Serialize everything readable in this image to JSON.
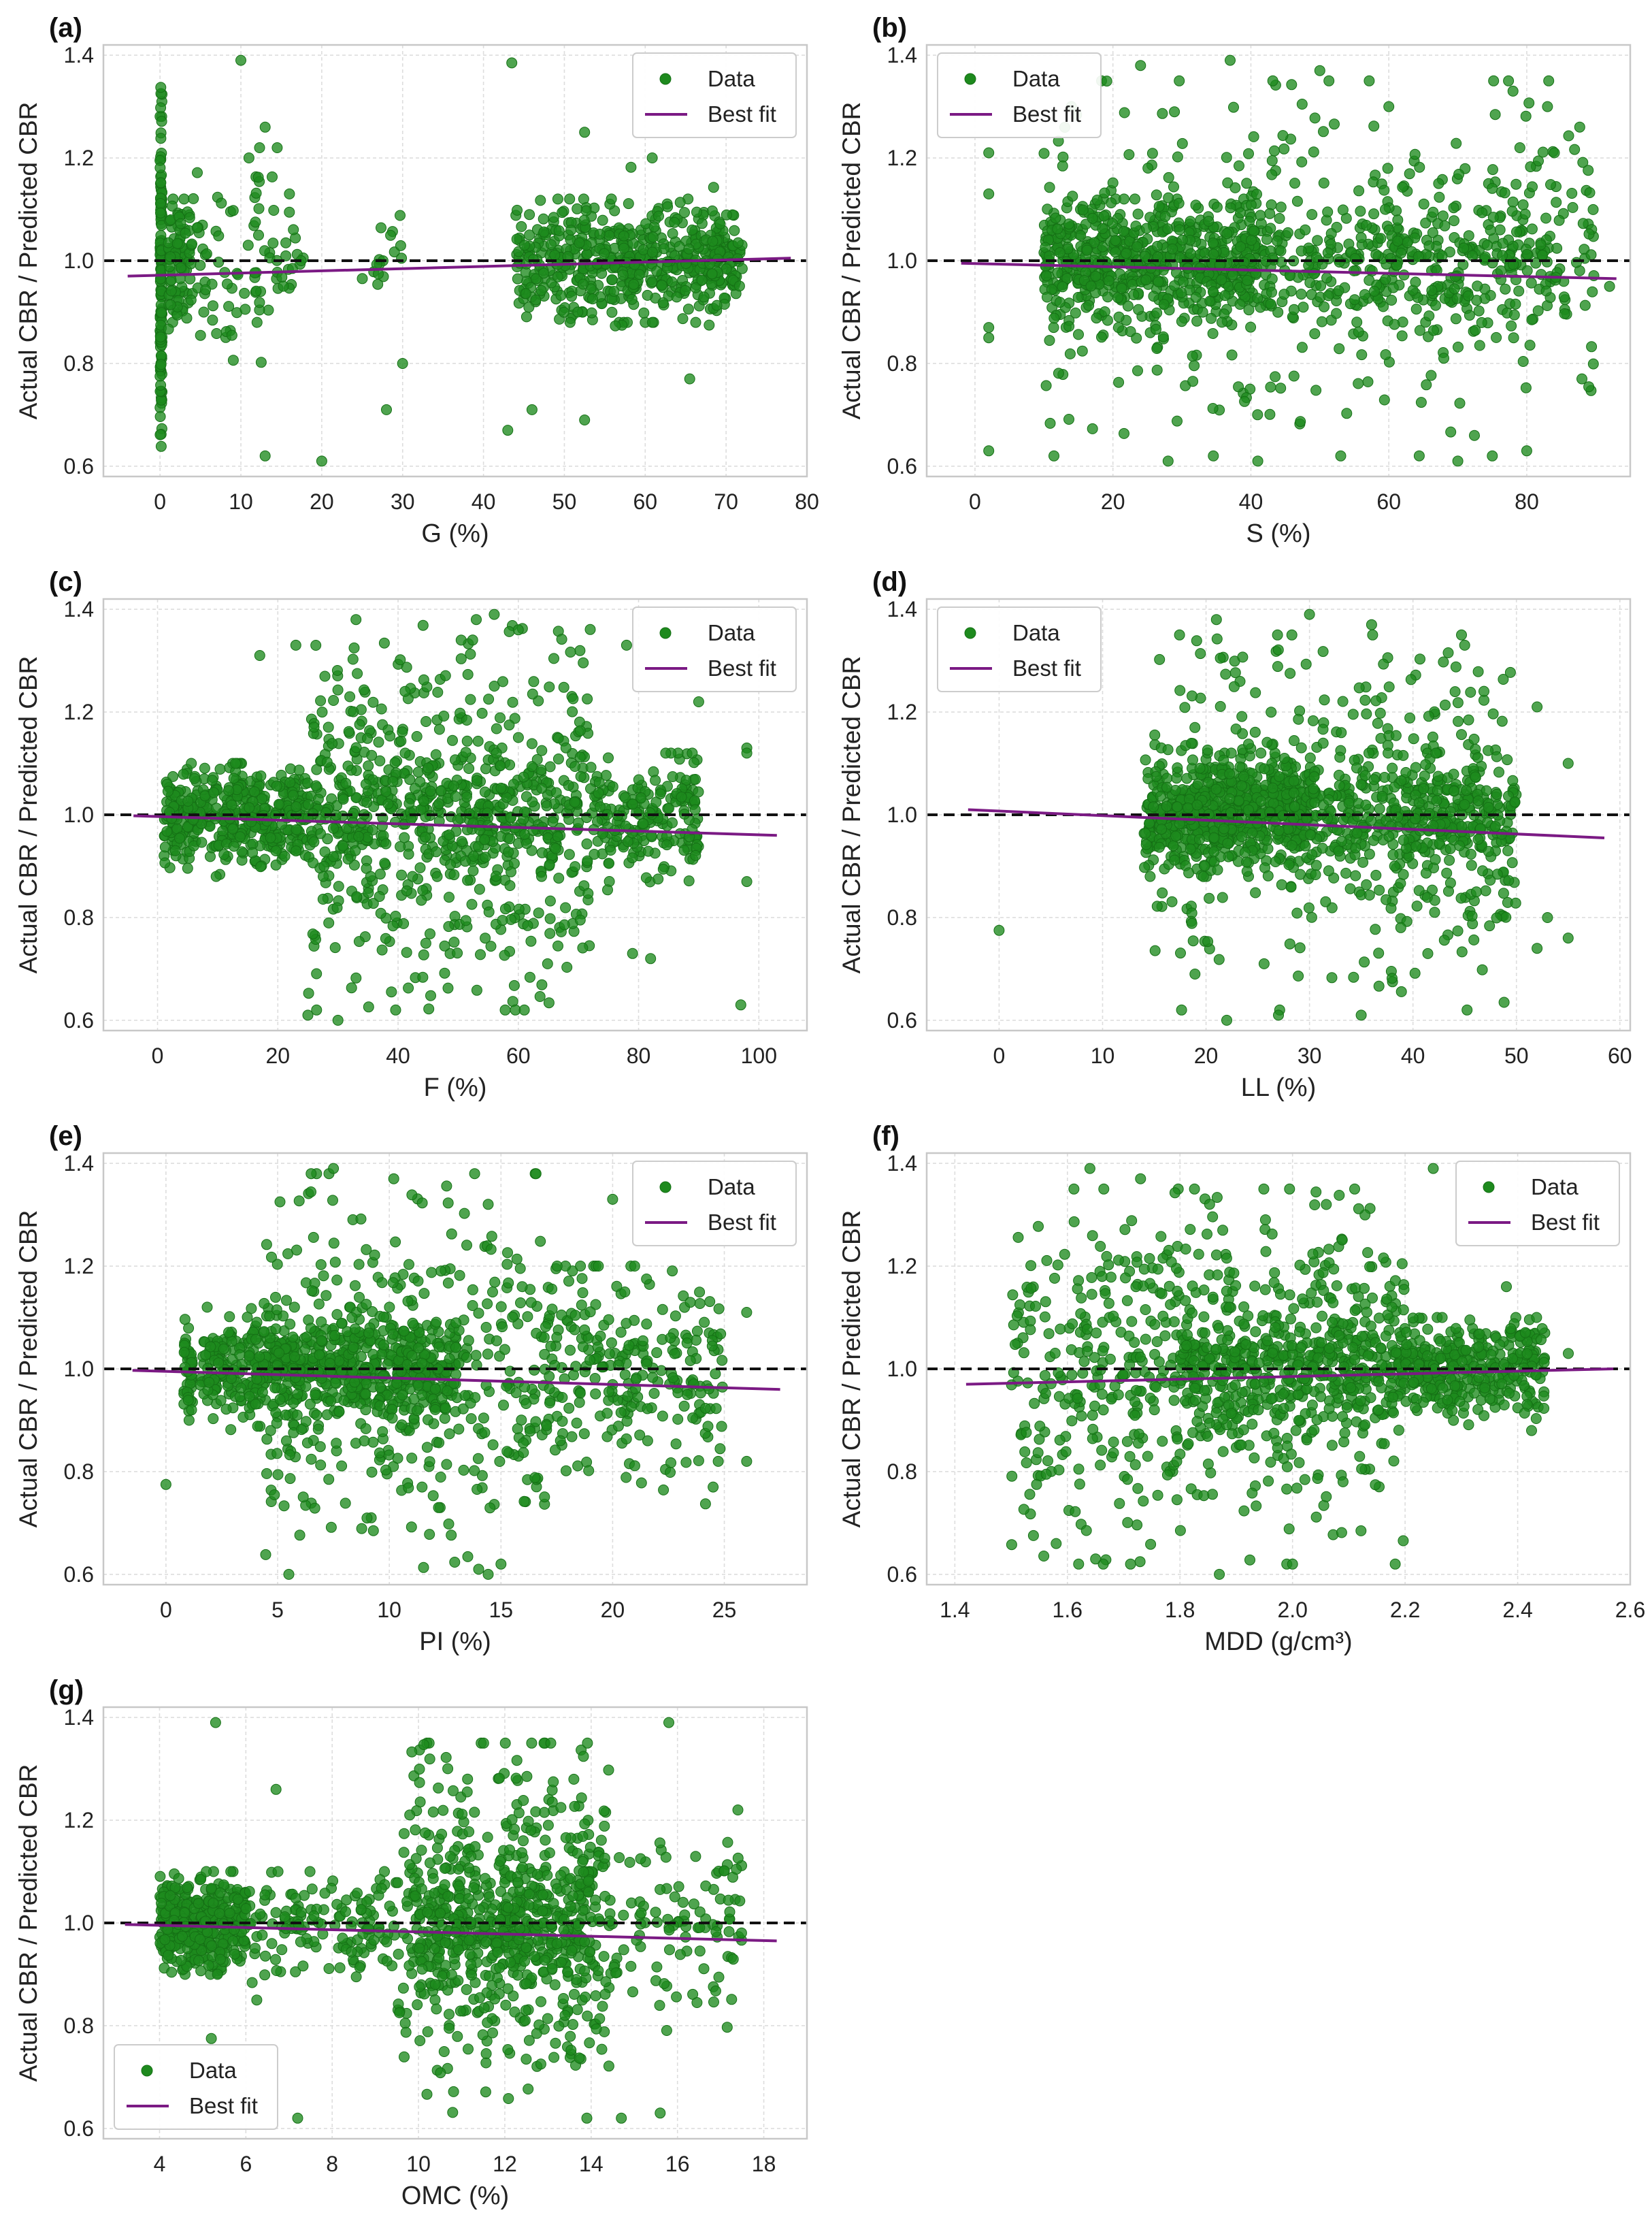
{
  "figure": {
    "ylabel": "Actual CBR / Predicted CBR",
    "legend_data": "Data",
    "legend_fit": "Best fit",
    "colors": {
      "points": "#1e8a1e",
      "points_edge": "#157015",
      "fit": "#7b1a84",
      "reference": "#111111",
      "grid": "#dddddd",
      "frame": "#c8c8c8",
      "text": "#222222"
    }
  },
  "chart_data": [
    {
      "id": "a",
      "panel_label": "(a)",
      "type": "scatter",
      "xlabel": "G (%)",
      "xlim": [
        -7,
        80
      ],
      "ylim": [
        0.58,
        1.42
      ],
      "xticks": [
        "0",
        "10",
        "20",
        "30",
        "40",
        "50",
        "60",
        "70",
        "80"
      ],
      "yticks": [
        "0.6",
        "0.8",
        "1.0",
        "1.2",
        "1.4"
      ],
      "reference_line": 1.0,
      "best_fit": {
        "x": [
          -4,
          78
        ],
        "y": [
          0.97,
          1.005
        ]
      },
      "legend": "top-right",
      "clusters": [
        {
          "x": [
            0,
            0.25
          ],
          "y": [
            0.6,
            1.38
          ],
          "n": 130
        },
        {
          "x": [
            1,
            4
          ],
          "y": [
            0.82,
            1.12
          ],
          "n": 90
        },
        {
          "x": [
            4,
            15
          ],
          "y": [
            0.78,
            1.22
          ],
          "n": 70
        },
        {
          "x": [
            14,
            18
          ],
          "y": [
            0.92,
            1.12
          ],
          "n": 18
        },
        {
          "x": [
            25,
            30
          ],
          "y": [
            0.9,
            1.12
          ],
          "n": 16
        },
        {
          "x": [
            44,
            72
          ],
          "y": [
            0.88,
            1.12
          ],
          "n": 520
        },
        {
          "x": [
            45,
            70
          ],
          "y": [
            0.72,
            1.2
          ],
          "n": 40
        }
      ],
      "points": [
        [
          10,
          1.39
        ],
        [
          43.5,
          1.385
        ],
        [
          13,
          1.26
        ],
        [
          20,
          0.61
        ],
        [
          13,
          0.62
        ],
        [
          52.5,
          1.25
        ],
        [
          52.5,
          0.69
        ],
        [
          43,
          0.67
        ],
        [
          28,
          0.71
        ],
        [
          30,
          0.8
        ],
        [
          46,
          0.71
        ],
        [
          65.5,
          0.77
        ],
        [
          16,
          1.13
        ],
        [
          11,
          1.2
        ],
        [
          12,
          0.88
        ]
      ]
    },
    {
      "id": "b",
      "panel_label": "(b)",
      "type": "scatter",
      "xlabel": "S (%)",
      "xlim": [
        -7,
        95
      ],
      "ylim": [
        0.58,
        1.42
      ],
      "xticks": [
        "0",
        "20",
        "40",
        "60",
        "80"
      ],
      "yticks": [
        "0.6",
        "0.8",
        "1.0",
        "1.2",
        "1.4"
      ],
      "reference_line": 1.0,
      "best_fit": {
        "x": [
          -2,
          93
        ],
        "y": [
          0.995,
          0.965
        ]
      },
      "legend": "top-left",
      "clusters": [
        {
          "x": [
            10,
            42
          ],
          "y": [
            0.86,
            1.12
          ],
          "n": 560
        },
        {
          "x": [
            10,
            90
          ],
          "y": [
            0.62,
            1.35
          ],
          "n": 450
        },
        {
          "x": [
            42,
            85
          ],
          "y": [
            0.85,
            1.15
          ],
          "n": 260
        }
      ],
      "points": [
        [
          2,
          0.63
        ],
        [
          2,
          0.85
        ],
        [
          2,
          0.87
        ],
        [
          2,
          1.13
        ],
        [
          2,
          1.21
        ],
        [
          37,
          1.39
        ],
        [
          50,
          1.37
        ],
        [
          24,
          1.38
        ],
        [
          60,
          1.3
        ],
        [
          78,
          1.33
        ],
        [
          83,
          1.3
        ],
        [
          79,
          1.22
        ],
        [
          84,
          1.21
        ],
        [
          88,
          0.77
        ],
        [
          92,
          0.95
        ],
        [
          28,
          0.61
        ],
        [
          41,
          0.61
        ],
        [
          70,
          0.61
        ],
        [
          75,
          0.62
        ],
        [
          80,
          0.63
        ]
      ]
    },
    {
      "id": "c",
      "panel_label": "(c)",
      "type": "scatter",
      "xlabel": "F (%)",
      "xlim": [
        -9,
        108
      ],
      "ylim": [
        0.58,
        1.42
      ],
      "xticks": [
        "0",
        "20",
        "40",
        "60",
        "80",
        "100"
      ],
      "yticks": [
        "0.6",
        "0.8",
        "1.0",
        "1.2",
        "1.4"
      ],
      "reference_line": 1.0,
      "best_fit": {
        "x": [
          -4,
          103
        ],
        "y": [
          0.998,
          0.96
        ]
      },
      "legend": "top-right",
      "clusters": [
        {
          "x": [
            1,
            25
          ],
          "y": [
            0.88,
            1.1
          ],
          "n": 430
        },
        {
          "x": [
            25,
            72
          ],
          "y": [
            0.62,
            1.38
          ],
          "n": 520
        },
        {
          "x": [
            25,
            70
          ],
          "y": [
            0.88,
            1.12
          ],
          "n": 260
        },
        {
          "x": [
            72,
            90
          ],
          "y": [
            0.85,
            1.12
          ],
          "n": 200
        }
      ],
      "points": [
        [
          33,
          1.38
        ],
        [
          56,
          1.39
        ],
        [
          60,
          1.36
        ],
        [
          23,
          1.33
        ],
        [
          78,
          1.33
        ],
        [
          17,
          1.31
        ],
        [
          97,
          0.63
        ],
        [
          98,
          0.87
        ],
        [
          98,
          1.13
        ],
        [
          98,
          1.12
        ],
        [
          90,
          1.22
        ],
        [
          79,
          0.73
        ],
        [
          82,
          0.72
        ],
        [
          25,
          0.61
        ],
        [
          30,
          0.6
        ],
        [
          61,
          0.62
        ]
      ]
    },
    {
      "id": "d",
      "panel_label": "(d)",
      "type": "scatter",
      "xlabel": "LL (%)",
      "xlim": [
        -7,
        61
      ],
      "ylim": [
        0.58,
        1.42
      ],
      "xticks": [
        "0",
        "10",
        "20",
        "30",
        "40",
        "50",
        "60"
      ],
      "yticks": [
        "0.6",
        "0.8",
        "1.0",
        "1.2",
        "1.4"
      ],
      "reference_line": 1.0,
      "best_fit": {
        "x": [
          -3,
          58.5
        ],
        "y": [
          1.01,
          0.955
        ]
      },
      "legend": "top-left",
      "clusters": [
        {
          "x": [
            14,
            30
          ],
          "y": [
            0.88,
            1.12
          ],
          "n": 620
        },
        {
          "x": [
            15,
            50
          ],
          "y": [
            0.62,
            1.35
          ],
          "n": 450
        },
        {
          "x": [
            30,
            50
          ],
          "y": [
            0.85,
            1.12
          ],
          "n": 300
        }
      ],
      "points": [
        [
          0,
          0.775
        ],
        [
          30,
          1.39
        ],
        [
          21,
          1.38
        ],
        [
          36,
          1.37
        ],
        [
          45,
          1.33
        ],
        [
          52,
          1.21
        ],
        [
          55,
          1.1
        ],
        [
          55,
          0.76
        ],
        [
          53,
          0.8
        ],
        [
          52,
          0.74
        ],
        [
          22,
          0.6
        ],
        [
          27,
          0.61
        ],
        [
          35,
          0.61
        ]
      ]
    },
    {
      "id": "e",
      "panel_label": "(e)",
      "type": "scatter",
      "xlabel": "PI (%)",
      "xlim": [
        -2.8,
        28.7
      ],
      "ylim": [
        0.58,
        1.42
      ],
      "xticks": [
        "0",
        "5",
        "10",
        "15",
        "20",
        "25"
      ],
      "yticks": [
        "0.6",
        "0.8",
        "1.0",
        "1.2",
        "1.4"
      ],
      "reference_line": 1.0,
      "best_fit": {
        "x": [
          -1.5,
          27.5
        ],
        "y": [
          0.997,
          0.96
        ]
      },
      "legend": "top-right",
      "clusters": [
        {
          "x": [
            0.8,
            1.2
          ],
          "y": [
            0.9,
            1.12
          ],
          "n": 50
        },
        {
          "x": [
            1.5,
            13
          ],
          "y": [
            0.88,
            1.12
          ],
          "n": 650
        },
        {
          "x": [
            4,
            17
          ],
          "y": [
            0.6,
            1.38
          ],
          "n": 400
        },
        {
          "x": [
            17,
            25
          ],
          "y": [
            0.72,
            1.2
          ],
          "n": 250
        }
      ],
      "points": [
        [
          0,
          0.775
        ],
        [
          7.5,
          1.39
        ],
        [
          10.2,
          1.37
        ],
        [
          6.5,
          1.38
        ],
        [
          20,
          1.33
        ],
        [
          26,
          1.11
        ],
        [
          26,
          0.82
        ],
        [
          24.5,
          0.77
        ],
        [
          5.5,
          0.6
        ],
        [
          15,
          0.62
        ],
        [
          14,
          0.61
        ]
      ]
    },
    {
      "id": "f",
      "panel_label": "(f)",
      "type": "scatter",
      "xlabel": "MDD (g/cm³)",
      "xlim": [
        1.35,
        2.6
      ],
      "ylim": [
        0.58,
        1.42
      ],
      "xticks": [
        "1.4",
        "1.6",
        "1.8",
        "2.0",
        "2.2",
        "2.4",
        "2.6"
      ],
      "yticks": [
        "0.6",
        "0.8",
        "1.0",
        "1.2",
        "1.4"
      ],
      "reference_line": 1.0,
      "best_fit": {
        "x": [
          1.42,
          2.57
        ],
        "y": [
          0.97,
          1.0
        ]
      },
      "legend": "top-right",
      "clusters": [
        {
          "x": [
            1.5,
            2.2
          ],
          "y": [
            0.62,
            1.35
          ],
          "n": 650
        },
        {
          "x": [
            1.8,
            2.2
          ],
          "y": [
            0.88,
            1.12
          ],
          "n": 300
        },
        {
          "x": [
            2.2,
            2.45
          ],
          "y": [
            0.88,
            1.1
          ],
          "n": 330
        }
      ],
      "points": [
        [
          1.64,
          1.39
        ],
        [
          2.25,
          1.39
        ],
        [
          1.73,
          1.37
        ],
        [
          2.06,
          1.32
        ],
        [
          2.38,
          1.16
        ],
        [
          2.49,
          1.03
        ],
        [
          1.58,
          0.66
        ],
        [
          1.62,
          0.62
        ],
        [
          1.65,
          0.63
        ],
        [
          1.87,
          0.6
        ],
        [
          2.0,
          0.62
        ]
      ]
    },
    {
      "id": "g",
      "panel_label": "(g)",
      "type": "scatter",
      "xlabel": "OMC (%)",
      "xlim": [
        2.7,
        19
      ],
      "ylim": [
        0.58,
        1.42
      ],
      "xticks": [
        "4",
        "6",
        "8",
        "10",
        "12",
        "14",
        "16",
        "18"
      ],
      "yticks": [
        "0.6",
        "0.8",
        "1.0",
        "1.2",
        "1.4"
      ],
      "reference_line": 1.0,
      "best_fit": {
        "x": [
          3.2,
          18.3
        ],
        "y": [
          0.997,
          0.965
        ]
      },
      "legend": "bottom-left",
      "clusters": [
        {
          "x": [
            4,
            6
          ],
          "y": [
            0.9,
            1.1
          ],
          "n": 380
        },
        {
          "x": [
            6,
            9.5
          ],
          "y": [
            0.85,
            1.1
          ],
          "n": 140
        },
        {
          "x": [
            9.5,
            14.5
          ],
          "y": [
            0.62,
            1.35
          ],
          "n": 520
        },
        {
          "x": [
            10,
            14
          ],
          "y": [
            0.85,
            1.12
          ],
          "n": 260
        },
        {
          "x": [
            14.5,
            17.5
          ],
          "y": [
            0.75,
            1.2
          ],
          "n": 100
        }
      ],
      "points": [
        [
          5.3,
          1.39
        ],
        [
          15.8,
          1.39
        ],
        [
          6.7,
          1.26
        ],
        [
          17.4,
          1.22
        ],
        [
          7.2,
          0.62
        ],
        [
          15.6,
          0.63
        ],
        [
          14.7,
          0.62
        ],
        [
          5.2,
          0.775
        ]
      ]
    }
  ]
}
